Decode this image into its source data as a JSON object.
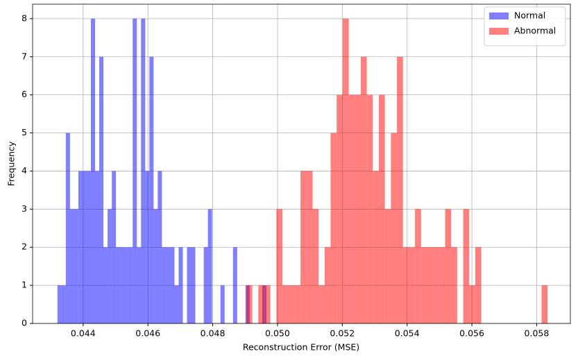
{
  "chart_data": {
    "type": "histogram",
    "xlabel": "Reconstruction Error (MSE)",
    "ylabel": "Frequency",
    "xlim": [
      0.04244,
      0.05904
    ],
    "ylim": [
      0,
      8.38
    ],
    "xticks": [
      0.044,
      0.046,
      0.048,
      {
        "value": 0.05,
        "label": "0.050"
      },
      0.052,
      0.054,
      0.056,
      0.058
    ],
    "yticks": [
      0,
      1,
      2,
      3,
      4,
      5,
      6,
      7,
      8
    ],
    "grid": true,
    "legend": "upper right",
    "alpha": 0.5,
    "series": [
      {
        "name": "Normal",
        "color": "#0000ff",
        "range": [
          0.043207,
          0.049657
        ],
        "values": [
          1,
          1,
          5,
          3,
          3,
          4,
          4,
          4,
          8,
          4,
          7,
          2,
          3,
          4,
          2,
          2,
          2,
          2,
          8,
          2,
          8,
          4,
          7,
          3,
          4,
          2,
          2,
          2,
          1,
          2,
          0,
          2,
          2,
          0,
          0,
          2,
          3,
          0,
          0,
          1,
          0,
          0,
          2,
          0,
          0,
          1,
          0,
          0,
          0,
          1
        ]
      },
      {
        "name": "Abnormal",
        "color": "#ff0000",
        "range": [
          0.049036,
          0.058336
        ],
        "values": [
          1,
          0,
          1,
          1,
          0,
          3,
          1,
          1,
          1,
          4,
          4,
          3,
          1,
          2,
          5,
          6,
          8,
          6,
          6,
          7,
          6,
          4,
          6,
          3,
          5,
          7,
          2,
          2,
          3,
          2,
          2,
          2,
          2,
          3,
          2,
          0,
          3,
          1,
          2,
          0,
          0,
          0,
          0,
          0,
          0,
          0,
          0,
          0,
          0,
          1
        ]
      }
    ]
  }
}
